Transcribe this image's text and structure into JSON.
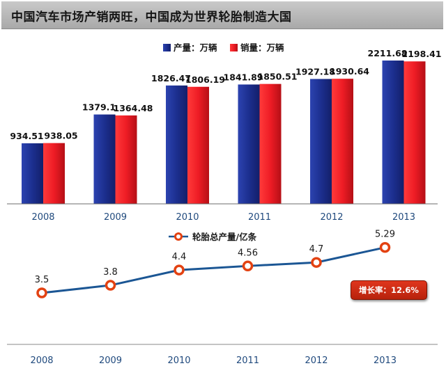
{
  "header": {
    "title": "中国汽车市场产销两旺，中国成为世界轮胎制造大国"
  },
  "colors": {
    "production": "#1c2f8f",
    "sales": "#ee1c25",
    "line": "#1b5694",
    "marker_fill": "#ffffff",
    "marker_edge": "#e34212",
    "axis_label": "#1f497d",
    "badge": "#c9260f"
  },
  "chart_data": [
    {
      "type": "bar",
      "categories": [
        "2008",
        "2009",
        "2010",
        "2011",
        "2012",
        "2013"
      ],
      "series": [
        {
          "name": "产量：万辆",
          "values": [
            934.51,
            1379.1,
            1826.47,
            1841.89,
            1927.18,
            2211.68
          ]
        },
        {
          "name": "销量：万辆",
          "values": [
            938.05,
            1364.48,
            1806.19,
            1850.51,
            1930.64,
            2198.41
          ]
        }
      ],
      "data_labels": {
        "产量：万辆": [
          "934.51",
          "1379.1",
          "1826.47",
          "1841.89",
          "1927.18",
          "2211.68"
        ],
        "销量：万辆": [
          "938.05",
          "1364.48",
          "1806.19",
          "1850.51",
          "1930.64",
          "2198.41"
        ]
      },
      "legend_position": "top-center",
      "ylim": [
        0,
        2300
      ],
      "grid": false
    },
    {
      "type": "line",
      "categories": [
        "2008",
        "2009",
        "2010",
        "2011",
        "2012",
        "2013"
      ],
      "series": [
        {
          "name": "轮胎总产量/亿条",
          "values": [
            3.5,
            3.8,
            4.4,
            4.56,
            4.7,
            5.29
          ]
        }
      ],
      "data_labels": [
        "3.5",
        "3.8",
        "4.4",
        "4.56",
        "4.7",
        "5.29"
      ],
      "legend_position": "top-center",
      "annotation": "增长率：12.6%",
      "ylim": [
        0,
        6
      ],
      "grid": false
    }
  ]
}
